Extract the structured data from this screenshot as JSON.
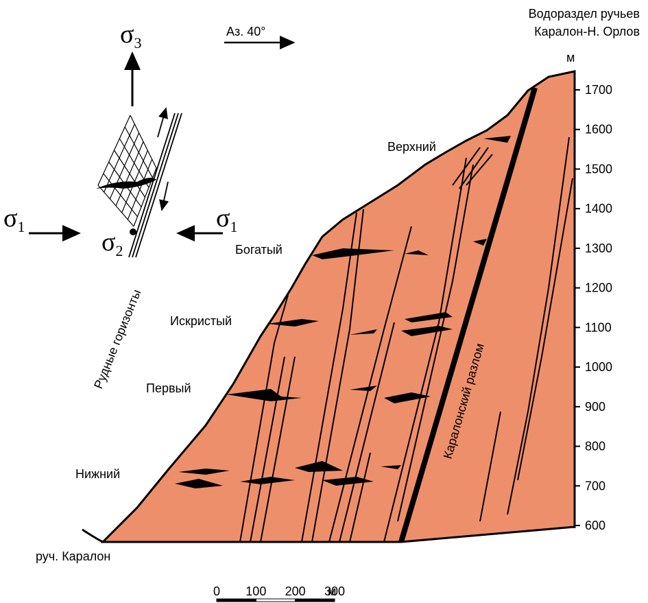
{
  "header": {
    "watershed": [
      "Водораздел ручьев",
      "Каралон-Н. Орлов"
    ]
  },
  "azimuth": "Аз. 40°",
  "stress": {
    "sigma3": {
      "symbol": "σ",
      "index": "3"
    },
    "sigma1_left": {
      "symbol": "σ",
      "index": "1"
    },
    "sigma1_right": {
      "symbol": "σ",
      "index": "1"
    },
    "sigma2": {
      "symbol": "σ",
      "index": "2"
    }
  },
  "ore_horizons_label": "Рудные горизонты",
  "horizons": [
    "Верхний",
    "Богатый",
    "Искристый",
    "Первый",
    "Нижний"
  ],
  "fault_label": "Каралонский разлом",
  "stream_label": "руч. Каралон",
  "elevation_axis": {
    "unit": "м",
    "ticks": [
      600,
      700,
      800,
      900,
      1000,
      1100,
      1200,
      1300,
      1400,
      1500,
      1600,
      1700
    ]
  },
  "scale_bar": {
    "ticks": [
      0,
      100,
      200,
      300
    ],
    "unit": "м"
  }
}
